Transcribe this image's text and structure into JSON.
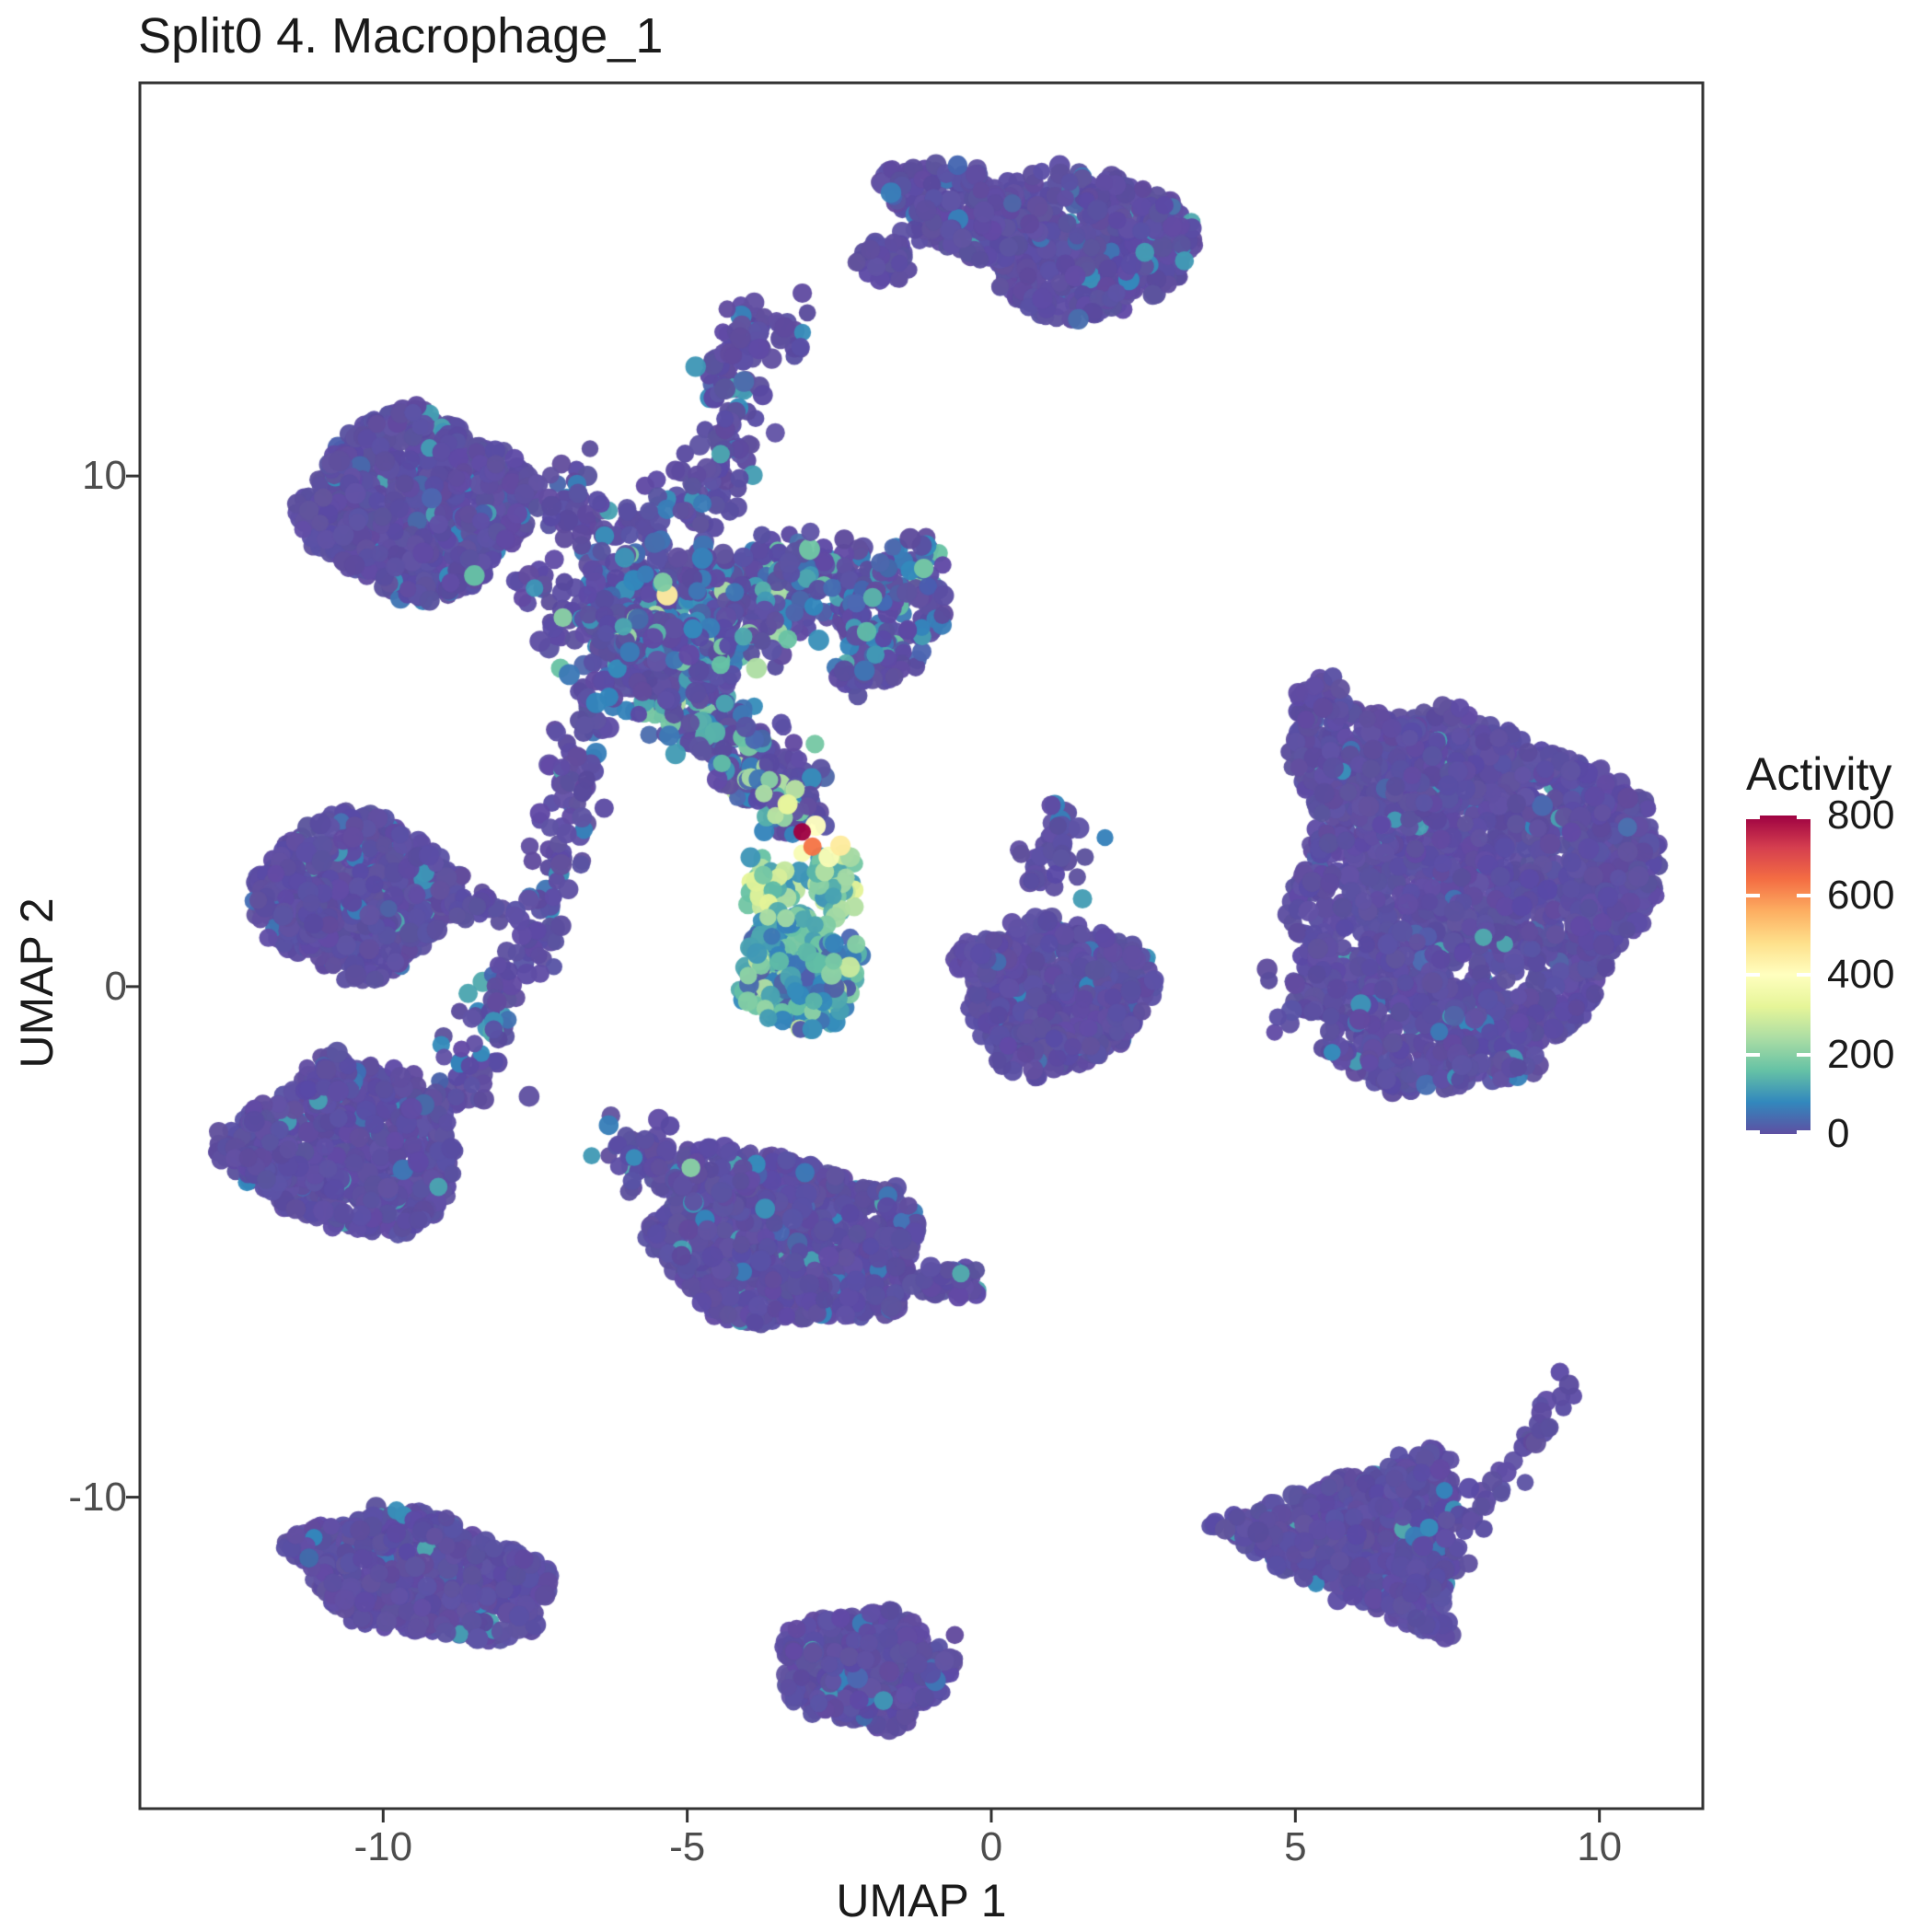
{
  "page": {
    "title": "Split0 4. Macrophage_1"
  },
  "axes": {
    "x": {
      "label": "UMAP 1",
      "tick_labels": [
        "-10",
        "-5",
        "0",
        "5",
        "10"
      ]
    },
    "y": {
      "label": "UMAP 2",
      "tick_labels": [
        "-10",
        "0",
        "10"
      ]
    }
  },
  "legend": {
    "title": "Activity",
    "tick_labels": [
      "0",
      "200",
      "400",
      "600",
      "800"
    ],
    "tick_values": [
      0,
      200,
      400,
      600,
      800
    ],
    "domain": [
      0,
      800
    ]
  },
  "chart_data": {
    "type": "scatter",
    "title": "Split0 4. Macrophage_1",
    "xlabel": "UMAP 1",
    "ylabel": "UMAP 2",
    "xlim": [
      -14.0,
      11.7
    ],
    "ylim": [
      -16.1,
      17.7
    ],
    "x_ticks": [
      -10,
      -5,
      0,
      5,
      10
    ],
    "y_ticks": [
      -10,
      0,
      10
    ],
    "grid": false,
    "legend_position": "right",
    "color_scale": {
      "name": "spectral-reversed",
      "domain": [
        0,
        800
      ],
      "stops": [
        "#5e4fa2",
        "#3288bd",
        "#66c2a5",
        "#abdda4",
        "#e6f598",
        "#ffffbf",
        "#fee08b",
        "#fdae61",
        "#f46d43",
        "#d53e4f",
        "#9e0142"
      ]
    },
    "base_color": "#5e4fa2",
    "point_radius_px": 10.3,
    "seed": 1337,
    "clusters": [
      {
        "name": "top-bean",
        "shapes": [
          {
            "kind": "e",
            "cx": 1.6,
            "cy": 14.55,
            "rx": 1.75,
            "ry": 1.45,
            "rot": -8,
            "n": 520,
            "vm": "p",
            "bf": 0.05
          },
          {
            "kind": "e",
            "cx": -0.55,
            "cy": 15.2,
            "rx": 1.35,
            "ry": 0.8,
            "rot": -28,
            "n": 200,
            "vm": "p",
            "bf": 0.04
          },
          {
            "kind": "e",
            "cx": -1.75,
            "cy": 14.2,
            "rx": 0.45,
            "ry": 0.4,
            "rot": 0,
            "n": 40,
            "vm": "p",
            "bf": 0
          }
        ]
      },
      {
        "name": "small-comma",
        "shapes": [
          {
            "kind": "s",
            "pts": [
              [
                -3.15,
                12.75
              ],
              [
                -3.8,
                12.95
              ],
              [
                -4.35,
                12.5
              ],
              [
                -4.5,
                11.85
              ],
              [
                -4.15,
                11.35
              ]
            ],
            "w": 0.3,
            "n": 95,
            "vm": "p",
            "bf": 0.06
          }
        ]
      },
      {
        "name": "left-round",
        "shapes": [
          {
            "kind": "e",
            "cx": -9.45,
            "cy": 9.45,
            "rx": 1.82,
            "ry": 1.78,
            "rot": 0,
            "n": 800,
            "vm": "p",
            "bf": 0.04
          },
          {
            "kind": "r",
            "x0": -8.0,
            "x1": -6.3,
            "y0": 6.6,
            "y1": 8.4,
            "n": 24,
            "vm": "p",
            "bf": 0.08
          },
          {
            "kind": "r",
            "x0": -7.3,
            "x1": -6.4,
            "y0": 9.0,
            "y1": 10.7,
            "n": 12,
            "vm": "p",
            "bf": 0
          }
        ]
      },
      {
        "name": "central-tangle",
        "shapes": [
          {
            "kind": "s",
            "pts": [
              [
                -7.2,
                9.6
              ],
              [
                -5.9,
                8.9
              ],
              [
                -4.9,
                9.3
              ],
              [
                -4.3,
                10.3
              ],
              [
                -4.2,
                11.0
              ]
            ],
            "w": 0.28,
            "n": 130,
            "vm": "p",
            "bf": 0.12
          },
          {
            "kind": "s",
            "pts": [
              [
                -6.9,
                7.5
              ],
              [
                -5.9,
                7.75
              ],
              [
                -4.9,
                7.9
              ],
              [
                -3.9,
                7.6
              ],
              [
                -2.9,
                7.9
              ],
              [
                -2.0,
                8.05
              ]
            ],
            "w": 0.42,
            "n": 400,
            "vm": "m"
          },
          {
            "kind": "e",
            "cx": -1.55,
            "cy": 7.3,
            "rx": 0.8,
            "ry": 1.45,
            "rot": -15,
            "n": 140,
            "vm": "m"
          },
          {
            "kind": "s",
            "pts": [
              [
                -2.15,
                6.3
              ],
              [
                -2.2,
                5.8
              ]
            ],
            "w": 0.2,
            "n": 18,
            "vm": "m"
          },
          {
            "kind": "s",
            "pts": [
              [
                -6.6,
                6.6
              ],
              [
                -5.6,
                6.0
              ],
              [
                -4.7,
                5.2
              ],
              [
                -3.9,
                4.4
              ],
              [
                -3.4,
                3.7
              ],
              [
                -3.15,
                3.2
              ]
            ],
            "w": 0.38,
            "n": 320,
            "vm": "m2"
          },
          {
            "kind": "s",
            "pts": [
              [
                -6.6,
                5.5
              ],
              [
                -6.85,
                4.3
              ],
              [
                -7.05,
                3.1
              ],
              [
                -7.35,
                1.7
              ],
              [
                -7.95,
                0.2
              ],
              [
                -8.5,
                -1.2
              ],
              [
                -9.0,
                -2.3
              ]
            ],
            "w": 0.24,
            "n": 170,
            "vm": "p",
            "bf": 0.1
          },
          {
            "kind": "r",
            "x0": -6.7,
            "x1": -4.3,
            "y0": 5.5,
            "y1": 7.3,
            "n": 70,
            "vm": "p",
            "bf": 0.15
          },
          {
            "kind": "s",
            "pts": [
              [
                -6.3,
                6.95
              ],
              [
                -5.3,
                6.6
              ],
              [
                -4.5,
                6.95
              ],
              [
                -3.7,
                6.6
              ]
            ],
            "w": 0.3,
            "n": 120,
            "vm": "m"
          }
        ]
      },
      {
        "name": "mid-left-arrow",
        "shapes": [
          {
            "kind": "e",
            "cx": -10.45,
            "cy": 1.8,
            "rx": 1.65,
            "ry": 1.55,
            "rot": -5,
            "n": 560,
            "vm": "p",
            "bf": 0.06
          },
          {
            "kind": "t",
            "pts": [
              [
                -12.3,
                1.75
              ],
              [
                -11.0,
                2.8
              ],
              [
                -11.0,
                0.8
              ]
            ],
            "n": 70,
            "vm": "p",
            "bf": 0
          },
          {
            "kind": "s",
            "pts": [
              [
                -8.95,
                1.7
              ],
              [
                -8.0,
                1.6
              ]
            ],
            "w": 0.18,
            "n": 28,
            "vm": "p",
            "bf": 0
          }
        ]
      },
      {
        "name": "teal-teardrop",
        "shapes": [
          {
            "kind": "s",
            "pts": [
              [
                -3.68,
                2.4
              ],
              [
                -3.52,
                1.45
              ]
            ],
            "w": 0.2,
            "n": 40,
            "vm": "legs"
          },
          {
            "kind": "s",
            "pts": [
              [
                -2.62,
                2.45
              ],
              [
                -2.44,
                1.5
              ]
            ],
            "w": 0.2,
            "n": 40,
            "vm": "legs"
          },
          {
            "kind": "e",
            "cx": -3.15,
            "cy": 0.3,
            "rx": 1.0,
            "ry": 1.15,
            "rot": 8,
            "n": 210,
            "vm": "cool"
          }
        ]
      },
      {
        "name": "center-right-blob",
        "shapes": [
          {
            "kind": "s",
            "pts": [
              [
                1.35,
                3.35
              ],
              [
                0.95,
                2.6
              ],
              [
                0.78,
                2.1
              ]
            ],
            "w": 0.24,
            "n": 45,
            "vm": "p",
            "bf": 0.1
          },
          {
            "kind": "e",
            "cx": 1.15,
            "cy": -0.1,
            "rx": 1.5,
            "ry": 1.38,
            "rot": 0,
            "n": 430,
            "vm": "p",
            "bf": 0.05
          },
          {
            "kind": "e",
            "cx": -0.08,
            "cy": 0.55,
            "rx": 0.5,
            "ry": 0.42,
            "rot": 0,
            "n": 45,
            "vm": "p",
            "bf": 0
          },
          {
            "kind": "e",
            "cx": 0.7,
            "cy": -1.25,
            "rx": 0.72,
            "ry": 0.5,
            "rot": 0,
            "n": 65,
            "vm": "p",
            "bf": 0
          }
        ]
      },
      {
        "name": "right-big-blob",
        "shapes": [
          {
            "kind": "e",
            "cx": 7.9,
            "cy": 2.1,
            "rx": 2.9,
            "ry": 3.2,
            "rot": 0,
            "n": 1500,
            "vm": "p",
            "bf": 0.035
          },
          {
            "kind": "e",
            "cx": 6.3,
            "cy": 4.3,
            "rx": 1.5,
            "ry": 1.1,
            "rot": -20,
            "n": 260,
            "vm": "p",
            "bf": 0.03
          },
          {
            "kind": "e",
            "cx": 7.3,
            "cy": -0.95,
            "rx": 1.9,
            "ry": 1.1,
            "rot": 0,
            "n": 300,
            "vm": "p",
            "bf": 0.05
          },
          {
            "kind": "e",
            "cx": 10.15,
            "cy": 2.3,
            "rx": 0.75,
            "ry": 1.55,
            "rot": 0,
            "n": 150,
            "vm": "p",
            "bf": 0
          },
          {
            "kind": "e",
            "cx": 5.4,
            "cy": 5.6,
            "rx": 0.45,
            "ry": 0.5,
            "rot": 0,
            "n": 32,
            "vm": "p",
            "bf": 0
          },
          {
            "kind": "e",
            "cx": 5.35,
            "cy": -0.1,
            "rx": 0.4,
            "ry": 0.45,
            "rot": 0,
            "n": 30,
            "vm": "p",
            "bf": 0
          },
          {
            "kind": "r",
            "x0": 4.5,
            "x1": 5.6,
            "y0": -1.0,
            "y1": 1.5,
            "n": 14,
            "vm": "p",
            "bf": 0.1
          }
        ]
      },
      {
        "name": "lower-left-arrow",
        "shapes": [
          {
            "kind": "e",
            "cx": -10.55,
            "cy": -3.2,
            "rx": 1.85,
            "ry": 1.6,
            "rot": -8,
            "n": 640,
            "vm": "p",
            "bf": 0.06
          },
          {
            "kind": "t",
            "pts": [
              [
                -13.0,
                -3.1
              ],
              [
                -11.7,
                -2.2
              ],
              [
                -11.7,
                -4.0
              ]
            ],
            "n": 80,
            "vm": "p",
            "bf": 0
          },
          {
            "kind": "e",
            "cx": -10.9,
            "cy": -1.8,
            "rx": 0.45,
            "ry": 0.5,
            "rot": 0,
            "n": 45,
            "vm": "p",
            "bf": 0.1
          }
        ]
      },
      {
        "name": "bottom-center-bird",
        "shapes": [
          {
            "kind": "e",
            "cx": -3.35,
            "cy": -5.0,
            "rx": 2.2,
            "ry": 1.62,
            "rot": -8,
            "n": 820,
            "vm": "p",
            "bf": 0.05
          },
          {
            "kind": "s",
            "pts": [
              [
                -5.1,
                -3.6
              ],
              [
                -6.2,
                -3.05
              ]
            ],
            "w": 0.28,
            "n": 55,
            "vm": "p",
            "bf": 0.08
          },
          {
            "kind": "e",
            "cx": -4.55,
            "cy": -3.75,
            "rx": 0.7,
            "ry": 0.6,
            "rot": 0,
            "n": 90,
            "vm": "p",
            "bf": 0.05
          },
          {
            "kind": "e",
            "cx": -0.7,
            "cy": -5.75,
            "rx": 0.6,
            "ry": 0.35,
            "rot": 0,
            "n": 48,
            "vm": "p",
            "bf": 0.06
          }
        ]
      },
      {
        "name": "bottom-left-slab",
        "shapes": [
          {
            "kind": "e",
            "cx": -9.35,
            "cy": -11.55,
            "rx": 2.15,
            "ry": 1.15,
            "rot": -17,
            "n": 620,
            "vm": "p",
            "bf": 0.05
          }
        ]
      },
      {
        "name": "bottom-center-small",
        "shapes": [
          {
            "kind": "e",
            "cx": -2.1,
            "cy": -13.35,
            "rx": 1.4,
            "ry": 1.12,
            "rot": -5,
            "n": 400,
            "vm": "p",
            "bf": 0.05
          }
        ]
      },
      {
        "name": "bottom-right-triangle",
        "shapes": [
          {
            "kind": "t",
            "pts": [
              [
                3.55,
                -10.6
              ],
              [
                7.45,
                -8.95
              ],
              [
                7.5,
                -12.9
              ]
            ],
            "n": 640,
            "vm": "p",
            "bf": 0.04
          },
          {
            "kind": "e",
            "cx": 7.05,
            "cy": -10.9,
            "rx": 0.7,
            "ry": 1.6,
            "rot": 0,
            "n": 130,
            "vm": "p",
            "bf": 0.04
          },
          {
            "kind": "s",
            "pts": [
              [
                7.85,
                -10.35
              ],
              [
                8.55,
                -9.45
              ],
              [
                9.2,
                -8.6
              ]
            ],
            "w": 0.2,
            "n": 22,
            "vm": "p",
            "bf": 0
          },
          {
            "kind": "r",
            "x0": 8.9,
            "x1": 9.7,
            "y0": -8.7,
            "y1": -7.9,
            "n": 9,
            "vm": "p",
            "bf": 0
          }
        ]
      }
    ],
    "outliers": [
      {
        "x": -8.5,
        "y": 8.05,
        "v": 160
      },
      {
        "x": -7.6,
        "y": -2.15,
        "v": 0
      },
      {
        "x": -0.6,
        "y": -12.7,
        "v": 0
      },
      {
        "x": 7.85,
        "y": -11.3,
        "v": 0
      },
      {
        "x": 9.35,
        "y": -7.55,
        "v": 0
      },
      {
        "x": 9.5,
        "y": -7.8,
        "v": 0
      },
      {
        "x": 1.5,
        "y": 1.72,
        "v": 110
      },
      {
        "x": -4.94,
        "y": -3.55,
        "v": 200
      },
      {
        "x": -3.72,
        "y": -4.35,
        "v": 95
      },
      {
        "x": -0.5,
        "y": -5.62,
        "v": 130
      },
      {
        "x": -5.33,
        "y": 7.67,
        "v": 450
      },
      {
        "x": -5.4,
        "y": 7.92,
        "v": 190
      },
      {
        "x": -1.95,
        "y": 7.62,
        "v": 140
      },
      {
        "x": -2.05,
        "y": 6.95,
        "v": 150
      },
      {
        "x": -4.45,
        "y": 6.3,
        "v": 160
      },
      {
        "x": -6.05,
        "y": 7.05,
        "v": 120
      },
      {
        "x": -2.9,
        "y": 4.75,
        "v": 180
      },
      {
        "x": -3.65,
        "y": 4.05,
        "v": 200
      },
      {
        "x": -3.35,
        "y": 3.55,
        "v": 250
      }
    ],
    "hotspot": [
      {
        "x": -3.74,
        "y": 3.78,
        "v": 240
      },
      {
        "x": -3.55,
        "y": 3.35,
        "v": 260
      },
      {
        "x": -3.35,
        "y": 3.57,
        "v": 330
      },
      {
        "x": -2.74,
        "y": 2.25,
        "v": 250
      },
      {
        "x": -2.39,
        "y": 2.14,
        "v": 230
      },
      {
        "x": -3.11,
        "y": 2.61,
        "v": 380
      },
      {
        "x": -2.67,
        "y": 2.54,
        "v": 380
      },
      {
        "x": -2.89,
        "y": 3.15,
        "v": 400
      },
      {
        "x": -2.48,
        "y": 2.76,
        "v": 450
      },
      {
        "x": -2.94,
        "y": 2.74,
        "v": 630
      },
      {
        "x": -3.11,
        "y": 3.03,
        "v": 800
      }
    ]
  }
}
